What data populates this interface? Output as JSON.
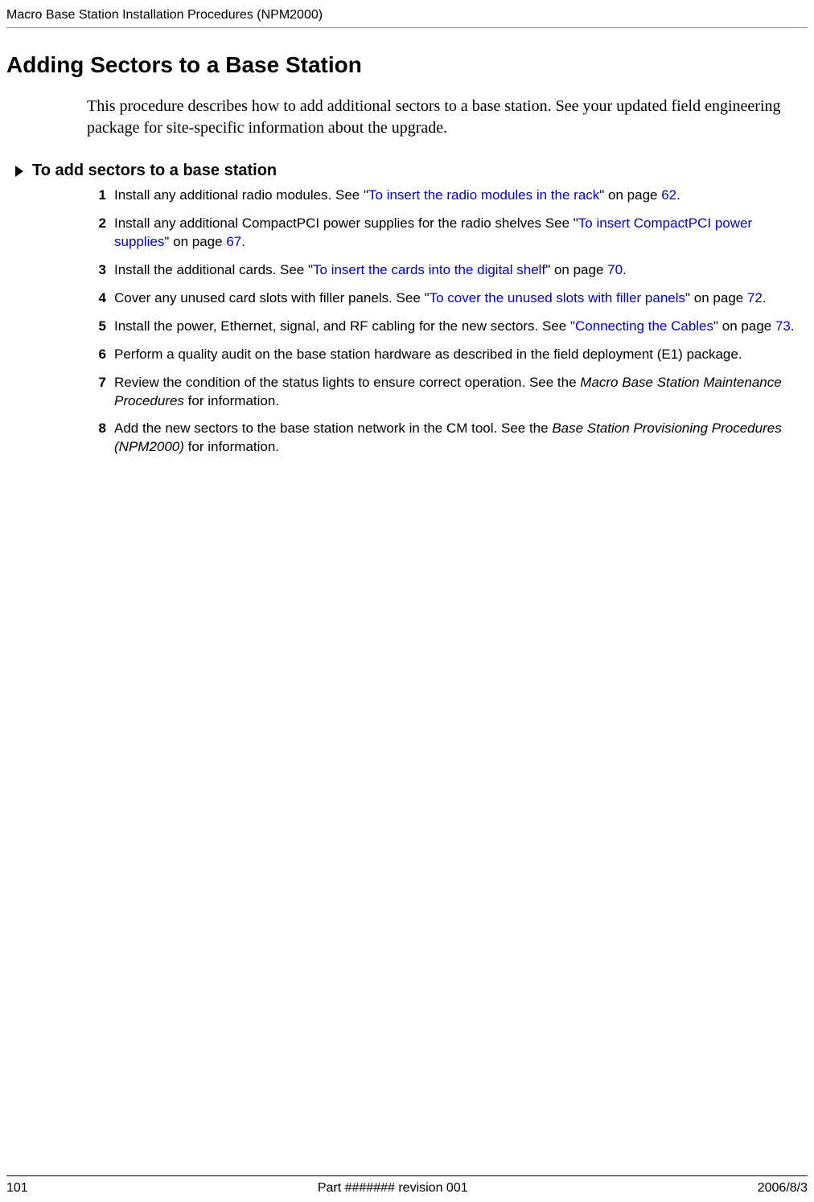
{
  "header": {
    "running_title": "Macro Base Station Installation Procedures (NPM2000)"
  },
  "title": "Adding Sectors to a Base Station",
  "intro": "This procedure describes how to add additional sectors to a base station. See your updated field engineering package for site-specific information about the upgrade.",
  "task_heading": "To add sectors to a base station",
  "colors": {
    "link": "#0000cc",
    "header_rule": "#9a8aa8",
    "text": "#000000"
  },
  "steps": [
    {
      "parts": [
        {
          "t": "Install any additional radio modules. See \""
        },
        {
          "t": "To insert the radio modules in the rack",
          "link": true
        },
        {
          "t": "\" on page "
        },
        {
          "t": "62",
          "link": true
        },
        {
          "t": "."
        }
      ]
    },
    {
      "parts": [
        {
          "t": "Install any additional CompactPCI power supplies for the radio shelves See \""
        },
        {
          "t": "To insert CompactPCI power supplies",
          "link": true
        },
        {
          "t": "\" on page "
        },
        {
          "t": "67",
          "link": true
        },
        {
          "t": "."
        }
      ]
    },
    {
      "parts": [
        {
          "t": "Install the additional cards. See \""
        },
        {
          "t": "To insert the cards into the digital shelf",
          "link": true
        },
        {
          "t": "\" on page "
        },
        {
          "t": "70",
          "link": true
        },
        {
          "t": "."
        }
      ]
    },
    {
      "parts": [
        {
          "t": "Cover any unused card slots with filler panels. See \""
        },
        {
          "t": "To cover the unused slots with filler panels",
          "link": true
        },
        {
          "t": "\" on page "
        },
        {
          "t": "72",
          "link": true
        },
        {
          "t": "."
        }
      ]
    },
    {
      "parts": [
        {
          "t": "Install the power, Ethernet, signal, and RF cabling for the new sectors. See \""
        },
        {
          "t": "Connecting the Cables",
          "link": true
        },
        {
          "t": "\" on page "
        },
        {
          "t": "73",
          "link": true
        },
        {
          "t": "."
        }
      ]
    },
    {
      "parts": [
        {
          "t": "Perform a quality audit on the base station hardware as described in the field deployment (E1) package."
        }
      ]
    },
    {
      "parts": [
        {
          "t": "Review the condition of the status lights to ensure correct operation. See the "
        },
        {
          "t": "Macro Base Station Maintenance Procedures",
          "italic": true
        },
        {
          "t": " for information."
        }
      ]
    },
    {
      "parts": [
        {
          "t": "Add the new sectors to the base station network in the CM tool. See the "
        },
        {
          "t": "Base Station Provisioning Procedures (NPM2000)",
          "italic": true
        },
        {
          "t": " for information."
        }
      ]
    }
  ],
  "footer": {
    "page_number": "101",
    "part": "Part ####### revision 001",
    "date": "2006/8/3"
  }
}
